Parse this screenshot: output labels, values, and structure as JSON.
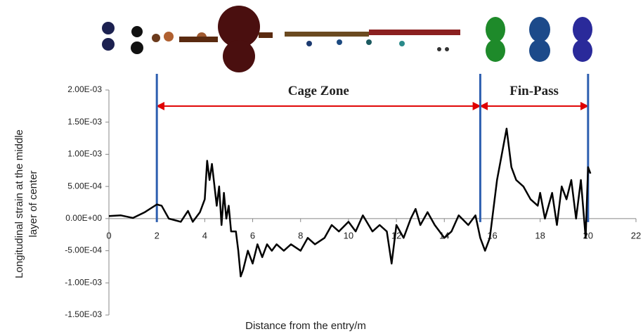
{
  "chart_data": {
    "type": "line",
    "x_label": "Distance from the entry/m",
    "y_label": [
      "Longitudinal strain at the middle",
      "layer of center"
    ],
    "x": [
      0,
      0.5,
      1,
      1.5,
      2,
      2.2,
      2.5,
      3,
      3.3,
      3.5,
      3.8,
      4,
      4.1,
      4.2,
      4.3,
      4.5,
      4.6,
      4.7,
      4.8,
      4.9,
      5,
      5.1,
      5.3,
      5.4,
      5.5,
      5.6,
      5.8,
      6,
      6.2,
      6.4,
      6.6,
      6.8,
      7,
      7.3,
      7.6,
      8,
      8.3,
      8.6,
      9,
      9.3,
      9.6,
      10,
      10.3,
      10.6,
      11,
      11.3,
      11.6,
      11.8,
      12,
      12.3,
      12.6,
      12.8,
      13,
      13.3,
      13.6,
      14,
      14.3,
      14.6,
      15,
      15.3,
      15.5,
      15.7,
      15.9,
      16,
      16.2,
      16.4,
      16.6,
      16.8,
      17,
      17.3,
      17.6,
      17.9,
      18,
      18.2,
      18.5,
      18.7,
      18.9,
      19.1,
      19.3,
      19.5,
      19.7,
      19.9,
      20,
      20.1
    ],
    "series": [
      {
        "color": "#000000",
        "values": [
          4e-05,
          5e-05,
          1e-05,
          0.0001,
          0.00022,
          0.0002,
          0,
          -5e-05,
          0.00012,
          -5e-05,
          0.0001,
          0.0003,
          0.0009,
          0.0006,
          0.00085,
          0.0002,
          0.0005,
          -0.0001,
          0.0004,
          0,
          0.0002,
          -0.0002,
          -0.0002,
          -0.0005,
          -0.0009,
          -0.0008,
          -0.0005,
          -0.0007,
          -0.0004,
          -0.0006,
          -0.0004,
          -0.0005,
          -0.0004,
          -0.0005,
          -0.0004,
          -0.0005,
          -0.0003,
          -0.0004,
          -0.0003,
          -0.0001,
          -0.0002,
          -5e-05,
          -0.0002,
          5e-05,
          -0.0002,
          -0.0001,
          -0.0002,
          -0.0007,
          -0.0001,
          -0.0003,
          0,
          0.00015,
          -0.0001,
          0.0001,
          -0.0001,
          -0.0003,
          -0.0002,
          5e-05,
          -0.0001,
          5e-05,
          -0.0003,
          -0.0005,
          -0.0003,
          0,
          0.0006,
          0.001,
          0.0014,
          0.0008,
          0.0006,
          0.0005,
          0.0003,
          0.0002,
          0.0004,
          0,
          0.0004,
          -0.0001,
          0.0005,
          0.0003,
          0.0006,
          0,
          0.0006,
          -0.0003,
          0.0008,
          0.0007
        ]
      }
    ],
    "xlim": [
      0,
      22
    ],
    "xticks": [
      0,
      2,
      4,
      6,
      8,
      10,
      12,
      14,
      16,
      18,
      20,
      22
    ],
    "ylim": [
      -0.0015,
      0.002
    ],
    "yticks": [
      {
        "value": -0.0015,
        "label": "-1.50E-03"
      },
      {
        "value": -0.001,
        "label": "-1.00E-03"
      },
      {
        "value": -0.0005,
        "label": "-5.00E-04"
      },
      {
        "value": 0,
        "label": "0.00E+00"
      },
      {
        "value": 0.0005,
        "label": "5.00E-04"
      },
      {
        "value": 0.001,
        "label": "1.00E-03"
      },
      {
        "value": 0.0015,
        "label": "1.50E-03"
      },
      {
        "value": 0.002,
        "label": "2.00E-03"
      }
    ],
    "markers": {
      "color": "#2e5fb0",
      "x": [
        2,
        15.5,
        20
      ]
    },
    "zones": {
      "color": "#e00000",
      "y": 0.00175,
      "items": [
        {
          "text": "Cage Zone",
          "from": 2,
          "to": 15.5
        },
        {
          "text": "Fin-Pass",
          "from": 15.5,
          "to": 20
        }
      ]
    }
  }
}
